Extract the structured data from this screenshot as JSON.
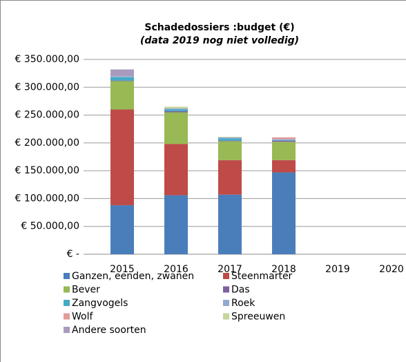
{
  "chart_data": {
    "type": "stacked_bar",
    "title": "Schadedossiers :budget (€)",
    "subtitle": "(data 2019 nog niet volledig)",
    "categories": [
      "2015",
      "2016",
      "2017",
      "2018",
      "2019",
      "2020"
    ],
    "series": [
      {
        "name": "Ganzen, eenden, zwanen",
        "color": "#4a7ebb",
        "values": [
          88000,
          106000,
          107000,
          147000,
          null,
          null
        ]
      },
      {
        "name": "Steenmarter",
        "color": "#be4b48",
        "values": [
          172000,
          92000,
          62000,
          22000,
          null,
          null
        ]
      },
      {
        "name": "Bever",
        "color": "#98b954",
        "values": [
          51000,
          57000,
          34000,
          33000,
          null,
          null
        ]
      },
      {
        "name": "Das",
        "color": "#7d60a0",
        "values": [
          1000,
          2000,
          1000,
          2000,
          null,
          null
        ]
      },
      {
        "name": "Zangvogels",
        "color": "#46aac5",
        "values": [
          6000,
          3000,
          4000,
          1000,
          null,
          null
        ]
      },
      {
        "name": "Roek",
        "color": "#93a9cf",
        "values": [
          2000,
          2000,
          2000,
          2000,
          null,
          null
        ]
      },
      {
        "name": "Wolf",
        "color": "#e39a98",
        "values": [
          0,
          0,
          0,
          3000,
          null,
          null
        ]
      },
      {
        "name": "Spreeuwen",
        "color": "#c3d69b",
        "values": [
          0,
          3000,
          1000,
          0,
          null,
          null
        ]
      },
      {
        "name": "Andere soorten",
        "color": "#a99bbd",
        "values": [
          12000,
          0,
          0,
          0,
          null,
          null
        ]
      }
    ],
    "ylim": [
      0,
      350000
    ],
    "yticks": [
      {
        "value": 0,
        "label": "€ -"
      },
      {
        "value": 50000,
        "label": "€ 50.000,00"
      },
      {
        "value": 100000,
        "label": "€ 100.000,00"
      },
      {
        "value": 150000,
        "label": "€ 150.000,00"
      },
      {
        "value": 200000,
        "label": "€ 200.000,00"
      },
      {
        "value": 250000,
        "label": "€ 250.000,00"
      },
      {
        "value": 300000,
        "label": "€ 300.000,00"
      },
      {
        "value": 350000,
        "label": "€ 350.000,00"
      }
    ],
    "grid": true
  }
}
